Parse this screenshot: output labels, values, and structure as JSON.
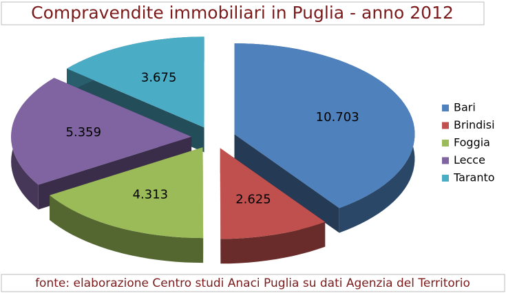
{
  "chart_data": {
    "type": "pie3d",
    "title": "Compravendite immobiliari in Puglia - anno 2012",
    "source": "fonte: elaborazione Centro studi Anaci Puglia su dati Agenzia del Territorio",
    "categories": [
      "Bari",
      "Brindisi",
      "Foggia",
      "Lecce",
      "Taranto"
    ],
    "values": [
      10703,
      2625,
      4313,
      5359,
      3675
    ],
    "value_labels": [
      "10.703",
      "2.625",
      "4.313",
      "5.359",
      "3.675"
    ],
    "colors": [
      "#4f81bd",
      "#c0504d",
      "#9bbb59",
      "#8064a2",
      "#4bacc6"
    ],
    "legend": "right"
  }
}
